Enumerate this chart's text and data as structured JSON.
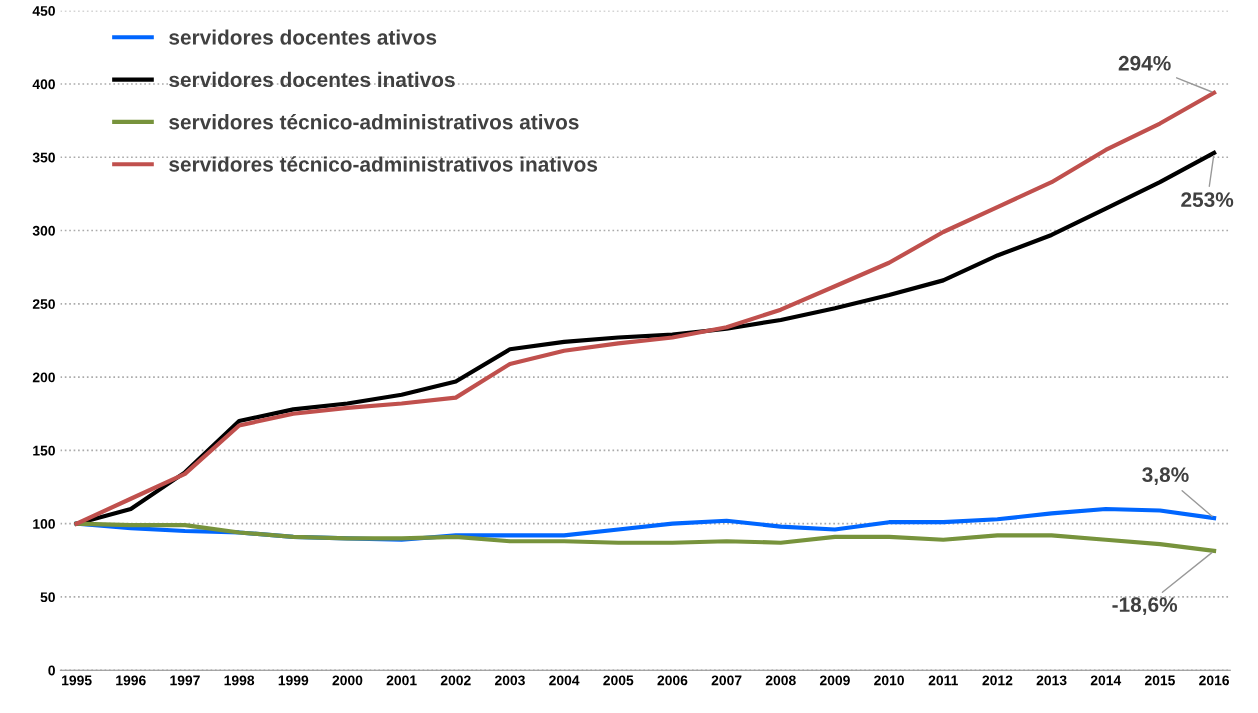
{
  "chart_data": {
    "type": "line",
    "categories": [
      "1995",
      "1996",
      "1997",
      "1998",
      "1999",
      "2000",
      "2001",
      "2002",
      "2003",
      "2004",
      "2005",
      "2006",
      "2007",
      "2008",
      "2009",
      "2010",
      "2011",
      "2012",
      "2013",
      "2014",
      "2015",
      "2016"
    ],
    "series": [
      {
        "name": "servidores docentes ativos",
        "color": "#0066ff",
        "values": [
          100,
          97,
          95,
          94,
          91,
          90,
          89,
          92,
          92,
          92,
          96,
          100,
          102,
          98,
          96,
          101,
          101,
          103,
          107,
          110,
          109,
          103.8
        ]
      },
      {
        "name": "servidores docentes inativos",
        "color": "#000000",
        "values": [
          100,
          110,
          135,
          170,
          178,
          182,
          188,
          197,
          219,
          224,
          227,
          229,
          233,
          239,
          247,
          256,
          266,
          283,
          297,
          315,
          333,
          353
        ]
      },
      {
        "name": "servidores técnico-administrativos ativos",
        "color": "#77933c",
        "values": [
          100,
          99,
          99,
          94,
          91,
          90,
          90,
          91,
          88,
          88,
          87,
          87,
          88,
          87,
          91,
          91,
          89,
          92,
          92,
          89,
          86,
          81.4
        ]
      },
      {
        "name": "servidores técnico-administrativos inativos",
        "color": "#c0504d",
        "values": [
          100,
          117,
          134,
          167,
          175,
          179,
          182,
          186,
          209,
          218,
          223,
          227,
          234,
          246,
          262,
          278,
          299,
          316,
          333,
          355,
          373,
          394
        ]
      }
    ],
    "ylim": [
      0,
      450
    ],
    "yticks": [
      0,
      50,
      100,
      150,
      200,
      250,
      300,
      350,
      400,
      450
    ],
    "grid": "y",
    "legend": "top left",
    "marker": "none",
    "line_style": "solid",
    "annotations": [
      {
        "text": "294%",
        "x": "2016",
        "y": 394
      },
      {
        "text": "253%",
        "x": "2016",
        "y": 353
      },
      {
        "text": "3,8%",
        "x": "2016",
        "y": 103.8
      },
      {
        "text": "-18,6%",
        "x": "2016",
        "y": 81.4
      }
    ]
  }
}
